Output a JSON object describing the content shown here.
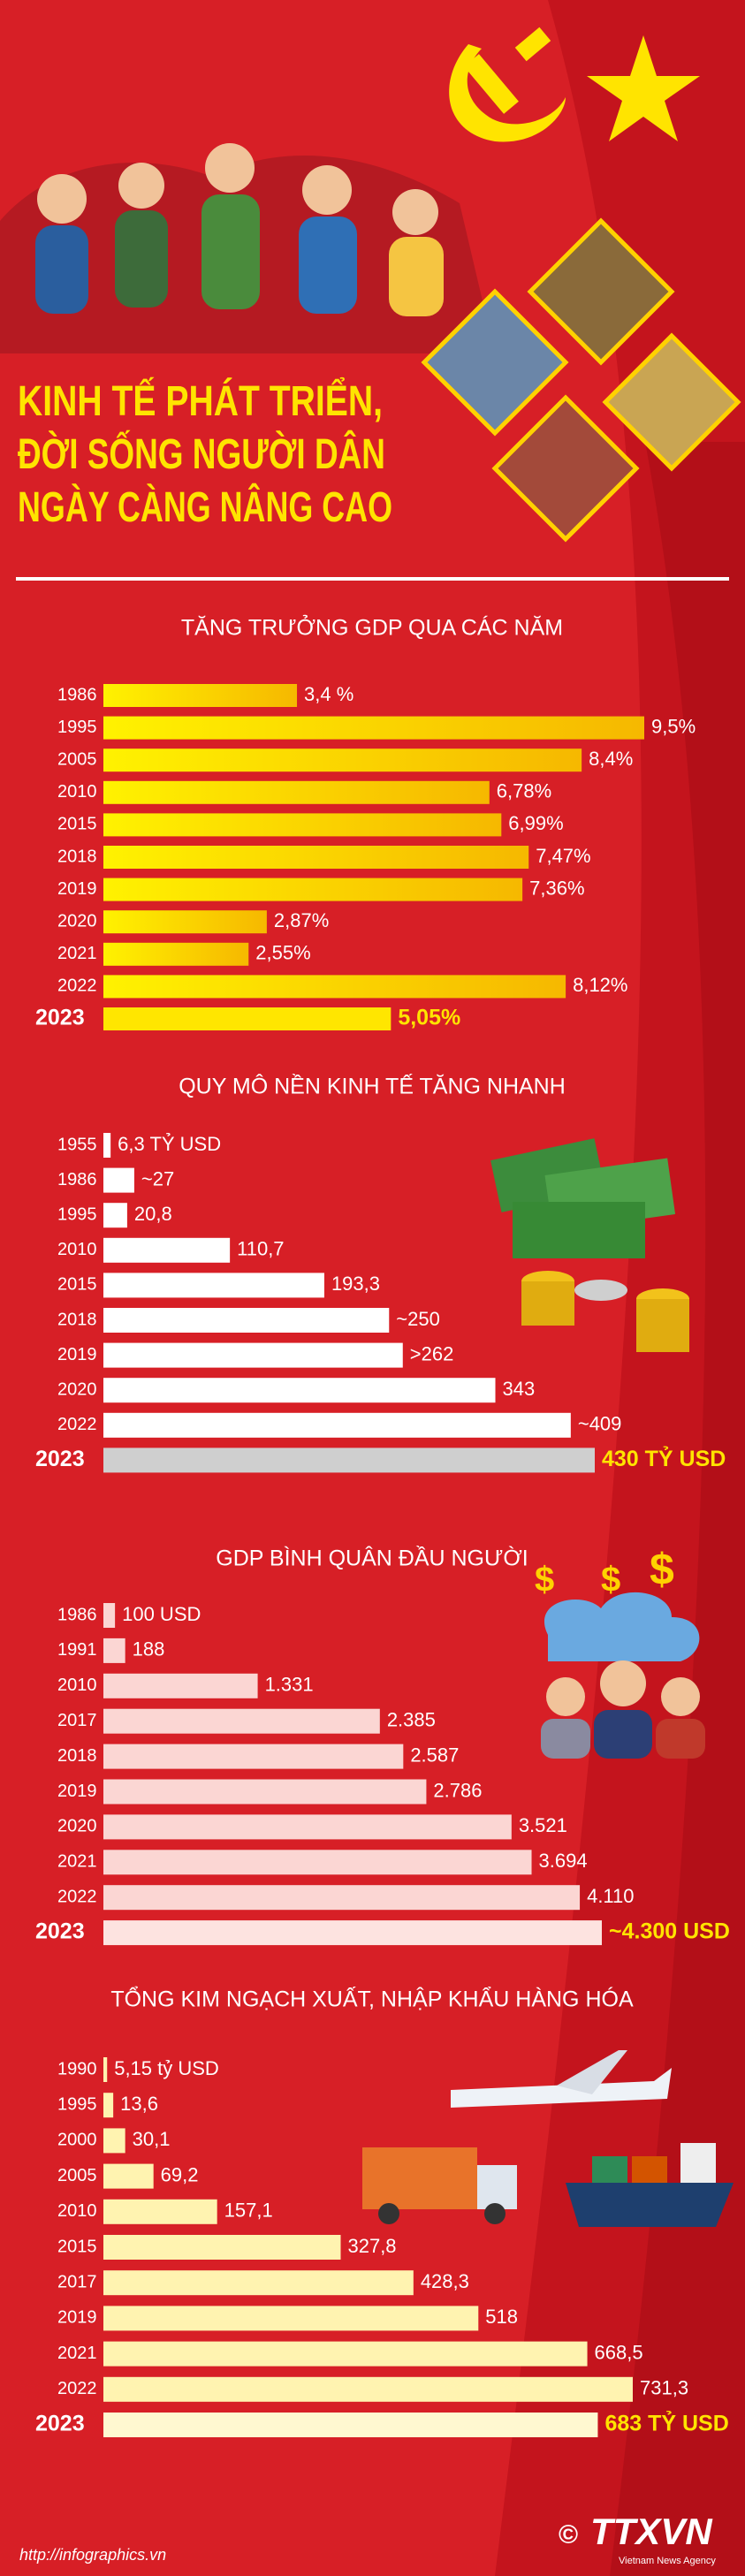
{
  "header": {
    "title_lines": [
      "KINH TẾ PHÁT TRIỂN,",
      "ĐỜI SỐNG NGƯỜI DÂN",
      "NGÀY CÀNG NÂNG CAO"
    ]
  },
  "chart_data": [
    {
      "type": "bar",
      "orientation": "horizontal",
      "title": "TĂNG TRƯỞNG GDP QUA CÁC NĂM",
      "categories": [
        "1986",
        "1995",
        "2005",
        "2010",
        "2015",
        "2018",
        "2019",
        "2020",
        "2021",
        "2022",
        "2023"
      ],
      "values": [
        3.4,
        9.5,
        8.4,
        6.78,
        6.99,
        7.47,
        7.36,
        2.87,
        2.55,
        8.12,
        5.05
      ],
      "value_labels": [
        "3,4 %",
        "9,5%",
        "8,4%",
        "6,78%",
        "6,99%",
        "7,47%",
        "7,36%",
        "2,87%",
        "2,55%",
        "8,12%",
        "5,05%"
      ],
      "color": "#ffd800",
      "last_color": "#ffe600"
    },
    {
      "type": "bar",
      "orientation": "horizontal",
      "title": "QUY MÔ NỀN KINH TẾ TĂNG NHANH",
      "categories": [
        "1955",
        "1986",
        "1995",
        "2010",
        "2015",
        "2018",
        "2019",
        "2020",
        "2022",
        "2023"
      ],
      "values": [
        6.3,
        27,
        20.8,
        110.7,
        193.3,
        250,
        262,
        343,
        409,
        430
      ],
      "value_labels": [
        "6,3 TỶ USD",
        "~27",
        "20,8",
        "110,7",
        "193,3",
        "~250",
        ">262",
        "343",
        "~409",
        "430 TỶ USD"
      ],
      "color": "#ffffff",
      "last_color": "#cfcfcf"
    },
    {
      "type": "bar",
      "orientation": "horizontal",
      "title": "GDP BÌNH QUÂN ĐẦU NGƯỜI",
      "categories": [
        "1986",
        "1991",
        "2010",
        "2017",
        "2018",
        "2019",
        "2020",
        "2021",
        "2022",
        "2023"
      ],
      "values": [
        100,
        188,
        1331,
        2385,
        2587,
        2786,
        3521,
        3694,
        4110,
        4300
      ],
      "value_labels": [
        "100 USD",
        "188",
        "1.331",
        "2.385",
        "2.587",
        "2.786",
        "3.521",
        "3.694",
        "4.110",
        "~4.300 USD"
      ],
      "color": "#fbd6d3",
      "last_color": "#fde3e0"
    },
    {
      "type": "bar",
      "orientation": "horizontal",
      "title": "TỔNG KIM NGẠCH XUẤT, NHẬP KHẨU HÀNG HÓA",
      "categories": [
        "1990",
        "1995",
        "2000",
        "2005",
        "2010",
        "2015",
        "2017",
        "2019",
        "2021",
        "2022",
        "2023"
      ],
      "values": [
        5.15,
        13.6,
        30.1,
        69.2,
        157.1,
        327.8,
        428.3,
        518,
        668.5,
        731.3,
        683
      ],
      "value_labels": [
        "5,15 tỷ USD",
        "13,6",
        "30,1",
        "69,2",
        "157,1",
        "327,8",
        "428,3",
        "518",
        "668,5",
        "731,3",
        "683 TỶ USD"
      ],
      "color": "#fff3b0",
      "last_color": "#fff8d0"
    }
  ],
  "footer": {
    "url": "http://infographics.vn",
    "copyright": "©",
    "logo": "TTXVN",
    "logo_sub": "Vietnam News Agency"
  }
}
